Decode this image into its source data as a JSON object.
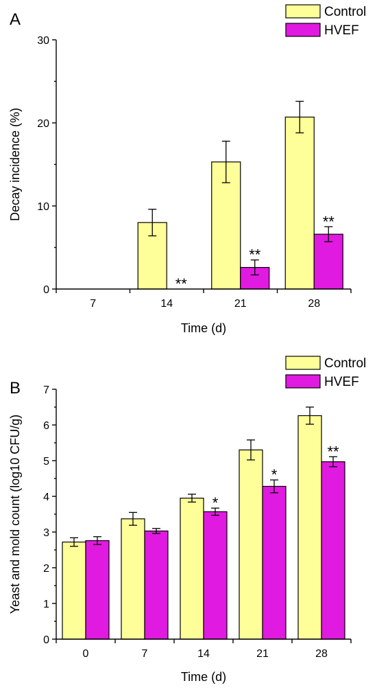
{
  "colors": {
    "control": "#ffff99",
    "hvef": "#e01ae0"
  },
  "chart_data": [
    {
      "type": "bar",
      "panel_label": "A",
      "categories": [
        "7",
        "14",
        "21",
        "28"
      ],
      "xlabel": "Time (d)",
      "ylabel": "Decay incidence (%)",
      "ylim": [
        0,
        30
      ],
      "yticks": [
        "0",
        "10",
        "20",
        "30"
      ],
      "legend": {
        "placement": "top-right",
        "entries": [
          "Control",
          "HVEF"
        ]
      },
      "series": [
        {
          "name": "Control",
          "values": [
            0,
            8.0,
            15.3,
            20.7
          ],
          "errors": [
            0,
            1.6,
            2.5,
            1.9
          ]
        },
        {
          "name": "HVEF",
          "values": [
            0,
            0,
            2.6,
            6.6
          ],
          "errors": [
            0,
            0,
            0.9,
            0.9
          ]
        }
      ],
      "annotations": [
        {
          "category": "14",
          "series": "HVEF",
          "text": "**"
        },
        {
          "category": "21",
          "series": "HVEF",
          "text": "**"
        },
        {
          "category": "28",
          "series": "HVEF",
          "text": "**"
        }
      ]
    },
    {
      "type": "bar",
      "panel_label": "B",
      "categories": [
        "0",
        "7",
        "14",
        "21",
        "28"
      ],
      "xlabel": "Time (d)",
      "ylabel": "Yeast and mold count (log10 CFU/g)",
      "ylim": [
        0,
        7
      ],
      "yticks": [
        "0",
        "1",
        "2",
        "3",
        "4",
        "5",
        "6",
        "7"
      ],
      "legend": {
        "placement": "top-right",
        "entries": [
          "Control",
          "HVEF"
        ]
      },
      "series": [
        {
          "name": "Control",
          "values": [
            2.72,
            3.37,
            3.95,
            5.3,
            6.26
          ],
          "errors": [
            0.12,
            0.18,
            0.11,
            0.28,
            0.24
          ]
        },
        {
          "name": "HVEF",
          "values": [
            2.76,
            3.03,
            3.57,
            4.28,
            4.97
          ],
          "errors": [
            0.11,
            0.07,
            0.1,
            0.18,
            0.14
          ]
        }
      ],
      "annotations": [
        {
          "category": "14",
          "series": "HVEF",
          "text": "*"
        },
        {
          "category": "21",
          "series": "HVEF",
          "text": "*"
        },
        {
          "category": "28",
          "series": "HVEF",
          "text": "**"
        }
      ]
    }
  ]
}
